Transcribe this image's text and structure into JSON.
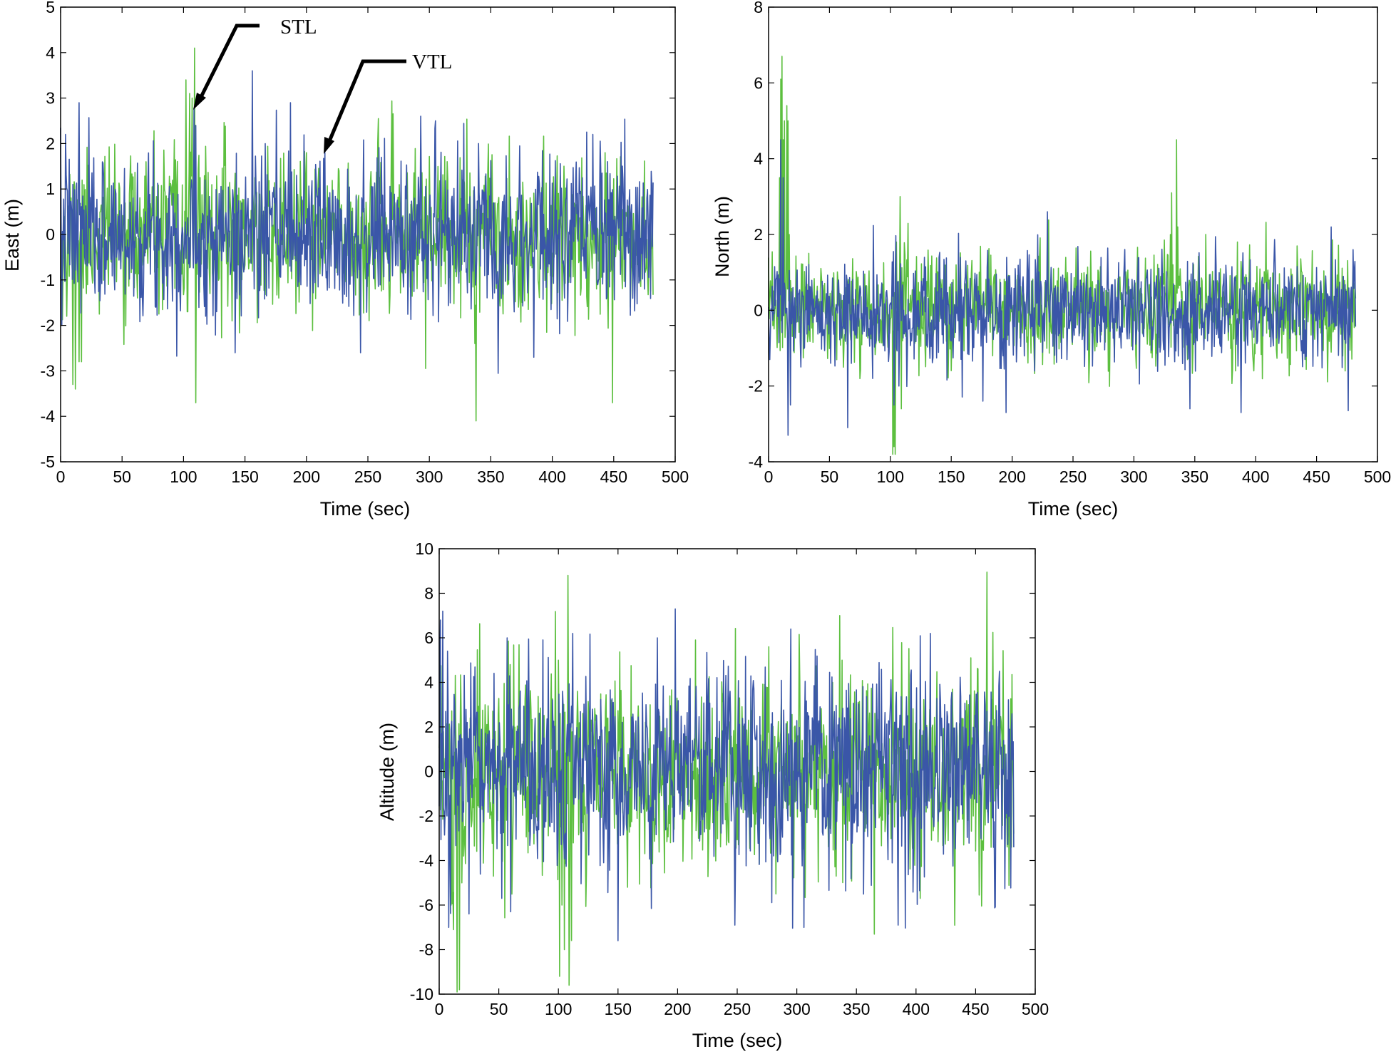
{
  "chart_data": [
    {
      "type": "line",
      "id": "east",
      "title": "",
      "xlabel": "Time (sec)",
      "ylabel": "East (m)",
      "xlim": [
        0,
        500
      ],
      "ylim": [
        -5,
        5
      ],
      "xticks": [
        0,
        50,
        100,
        150,
        200,
        250,
        300,
        350,
        400,
        450,
        500
      ],
      "yticks": [
        -5,
        -4,
        -3,
        -2,
        -1,
        0,
        1,
        2,
        3,
        4,
        5
      ],
      "grid": false,
      "series": [
        {
          "name": "STL",
          "color": "#5cbf3f",
          "noise_std": 0.85,
          "x_range": [
            0,
            482
          ],
          "samples": 965,
          "seed": 11,
          "spikes": [
            [
              5,
              -1.8
            ],
            [
              10,
              -3.3
            ],
            [
              12,
              -3.4
            ],
            [
              15,
              -2.8
            ],
            [
              17,
              -2.8
            ],
            [
              102,
              3.4
            ],
            [
              103,
              -1.7
            ],
            [
              105,
              3.1
            ],
            [
              107,
              3.0
            ],
            [
              109,
              4.1
            ],
            [
              110,
              -3.7
            ],
            [
              337,
              -2.4
            ],
            [
              338,
              -4.1
            ],
            [
              443,
              1.8
            ],
            [
              447,
              1.3
            ],
            [
              449,
              -3.7
            ]
          ]
        },
        {
          "name": "VTL",
          "color": "#3a56a8",
          "noise_std": 0.85,
          "x_range": [
            0,
            482
          ],
          "samples": 965,
          "seed": 7,
          "spikes": [
            [
              1,
              -2.0
            ],
            [
              4,
              2.2
            ],
            [
              15,
              2.9
            ],
            [
              110,
              2.4
            ],
            [
              142,
              -2.6
            ],
            [
              156,
              3.6
            ],
            [
              187,
              2.9
            ],
            [
              215,
              1.8
            ],
            [
              244,
              -2.6
            ],
            [
              293,
              2.6
            ],
            [
              305,
              2.5
            ],
            [
              340,
              2.0
            ],
            [
              385,
              -2.7
            ],
            [
              433,
              2.2
            ],
            [
              475,
              -1.2
            ]
          ]
        }
      ],
      "annotations": [
        {
          "text": "STL",
          "target": [
            110,
            2.8
          ]
        },
        {
          "text": "VTL",
          "target": [
            215,
            1.8
          ]
        }
      ]
    },
    {
      "type": "line",
      "id": "north",
      "title": "",
      "xlabel": "Time (sec)",
      "ylabel": "North (m)",
      "xlim": [
        0,
        500
      ],
      "ylim": [
        -4,
        8
      ],
      "xticks": [
        0,
        50,
        100,
        150,
        200,
        250,
        300,
        350,
        400,
        450,
        500
      ],
      "yticks": [
        -4,
        -2,
        0,
        2,
        4,
        6,
        8
      ],
      "grid": false,
      "series": [
        {
          "name": "STL",
          "color": "#5cbf3f",
          "noise_std": 0.7,
          "x_range": [
            0,
            482
          ],
          "samples": 965,
          "seed": 23,
          "spikes": [
            [
              9,
              3.5
            ],
            [
              10,
              6.1
            ],
            [
              11,
              6.7
            ],
            [
              12,
              4.5
            ],
            [
              13,
              5.0
            ],
            [
              15,
              5.4
            ],
            [
              16,
              5.0
            ],
            [
              17,
              2.0
            ],
            [
              102,
              -3.8
            ],
            [
              103,
              -3.6
            ],
            [
              104,
              -3.8
            ],
            [
              105,
              1.8
            ],
            [
              108,
              3.0
            ],
            [
              109,
              -2.6
            ],
            [
              330,
              2.0
            ],
            [
              331,
              3.1
            ],
            [
              332,
              1.2
            ],
            [
              335,
              4.5
            ],
            [
              336,
              2.2
            ],
            [
              337,
              0.9
            ]
          ]
        },
        {
          "name": "VTL",
          "color": "#3a56a8",
          "noise_std": 0.7,
          "x_range": [
            0,
            482
          ],
          "samples": 965,
          "seed": 5,
          "spikes": [
            [
              10,
              4.5
            ],
            [
              12,
              3.5
            ],
            [
              16,
              -3.3
            ],
            [
              18,
              -2.5
            ],
            [
              65,
              -3.1
            ],
            [
              103,
              -2.5
            ],
            [
              107,
              -2.0
            ],
            [
              176,
              -2.4
            ],
            [
              195,
              -2.7
            ],
            [
              229,
              2.6
            ],
            [
              346,
              -2.6
            ],
            [
              388,
              -2.7
            ],
            [
              462,
              2.2
            ],
            [
              480,
              1.6
            ]
          ]
        }
      ],
      "annotations": []
    },
    {
      "type": "line",
      "id": "altitude",
      "title": "",
      "xlabel": "Time (sec)",
      "ylabel": "Altitude (m)",
      "xlim": [
        0,
        500
      ],
      "ylim": [
        -10,
        10
      ],
      "xticks": [
        0,
        50,
        100,
        150,
        200,
        250,
        300,
        350,
        400,
        450,
        500
      ],
      "yticks": [
        -10,
        -8,
        -6,
        -4,
        -2,
        0,
        2,
        4,
        6,
        8,
        10
      ],
      "grid": false,
      "series": [
        {
          "name": "STL",
          "color": "#5cbf3f",
          "noise_std": 2.3,
          "x_range": [
            0,
            482
          ],
          "samples": 965,
          "seed": 31,
          "spikes": [
            [
              10,
              -6.0
            ],
            [
              12,
              -7.1
            ],
            [
              15,
              -9.9
            ],
            [
              17,
              -9.8
            ],
            [
              19,
              -5.0
            ],
            [
              100,
              5.0
            ],
            [
              101,
              -9.2
            ],
            [
              103,
              -6.0
            ],
            [
              105,
              -8.0
            ],
            [
              108,
              8.8
            ],
            [
              109,
              -9.6
            ],
            [
              330,
              4.0
            ],
            [
              333,
              -4.7
            ],
            [
              336,
              7.0
            ],
            [
              338,
              5.0
            ],
            [
              440,
              -3.3
            ],
            [
              444,
              3.0
            ],
            [
              446,
              5.1
            ],
            [
              448,
              -2.0
            ]
          ]
        },
        {
          "name": "VTL",
          "color": "#3a56a8",
          "noise_std": 2.3,
          "x_range": [
            0,
            482
          ],
          "samples": 965,
          "seed": 13,
          "spikes": [
            [
              1,
              6.8
            ],
            [
              3,
              7.2
            ],
            [
              8,
              -7.0
            ],
            [
              25,
              -6.4
            ],
            [
              57,
              6.0
            ],
            [
              60,
              -6.3
            ],
            [
              112,
              6.2
            ],
            [
              150,
              -7.6
            ],
            [
              183,
              6.0
            ],
            [
              198,
              7.3
            ],
            [
              248,
              -6.9
            ],
            [
              306,
              -7.0
            ],
            [
              385,
              -6.9
            ],
            [
              412,
              6.2
            ],
            [
              470,
              4.5
            ]
          ]
        }
      ],
      "annotations": []
    }
  ]
}
